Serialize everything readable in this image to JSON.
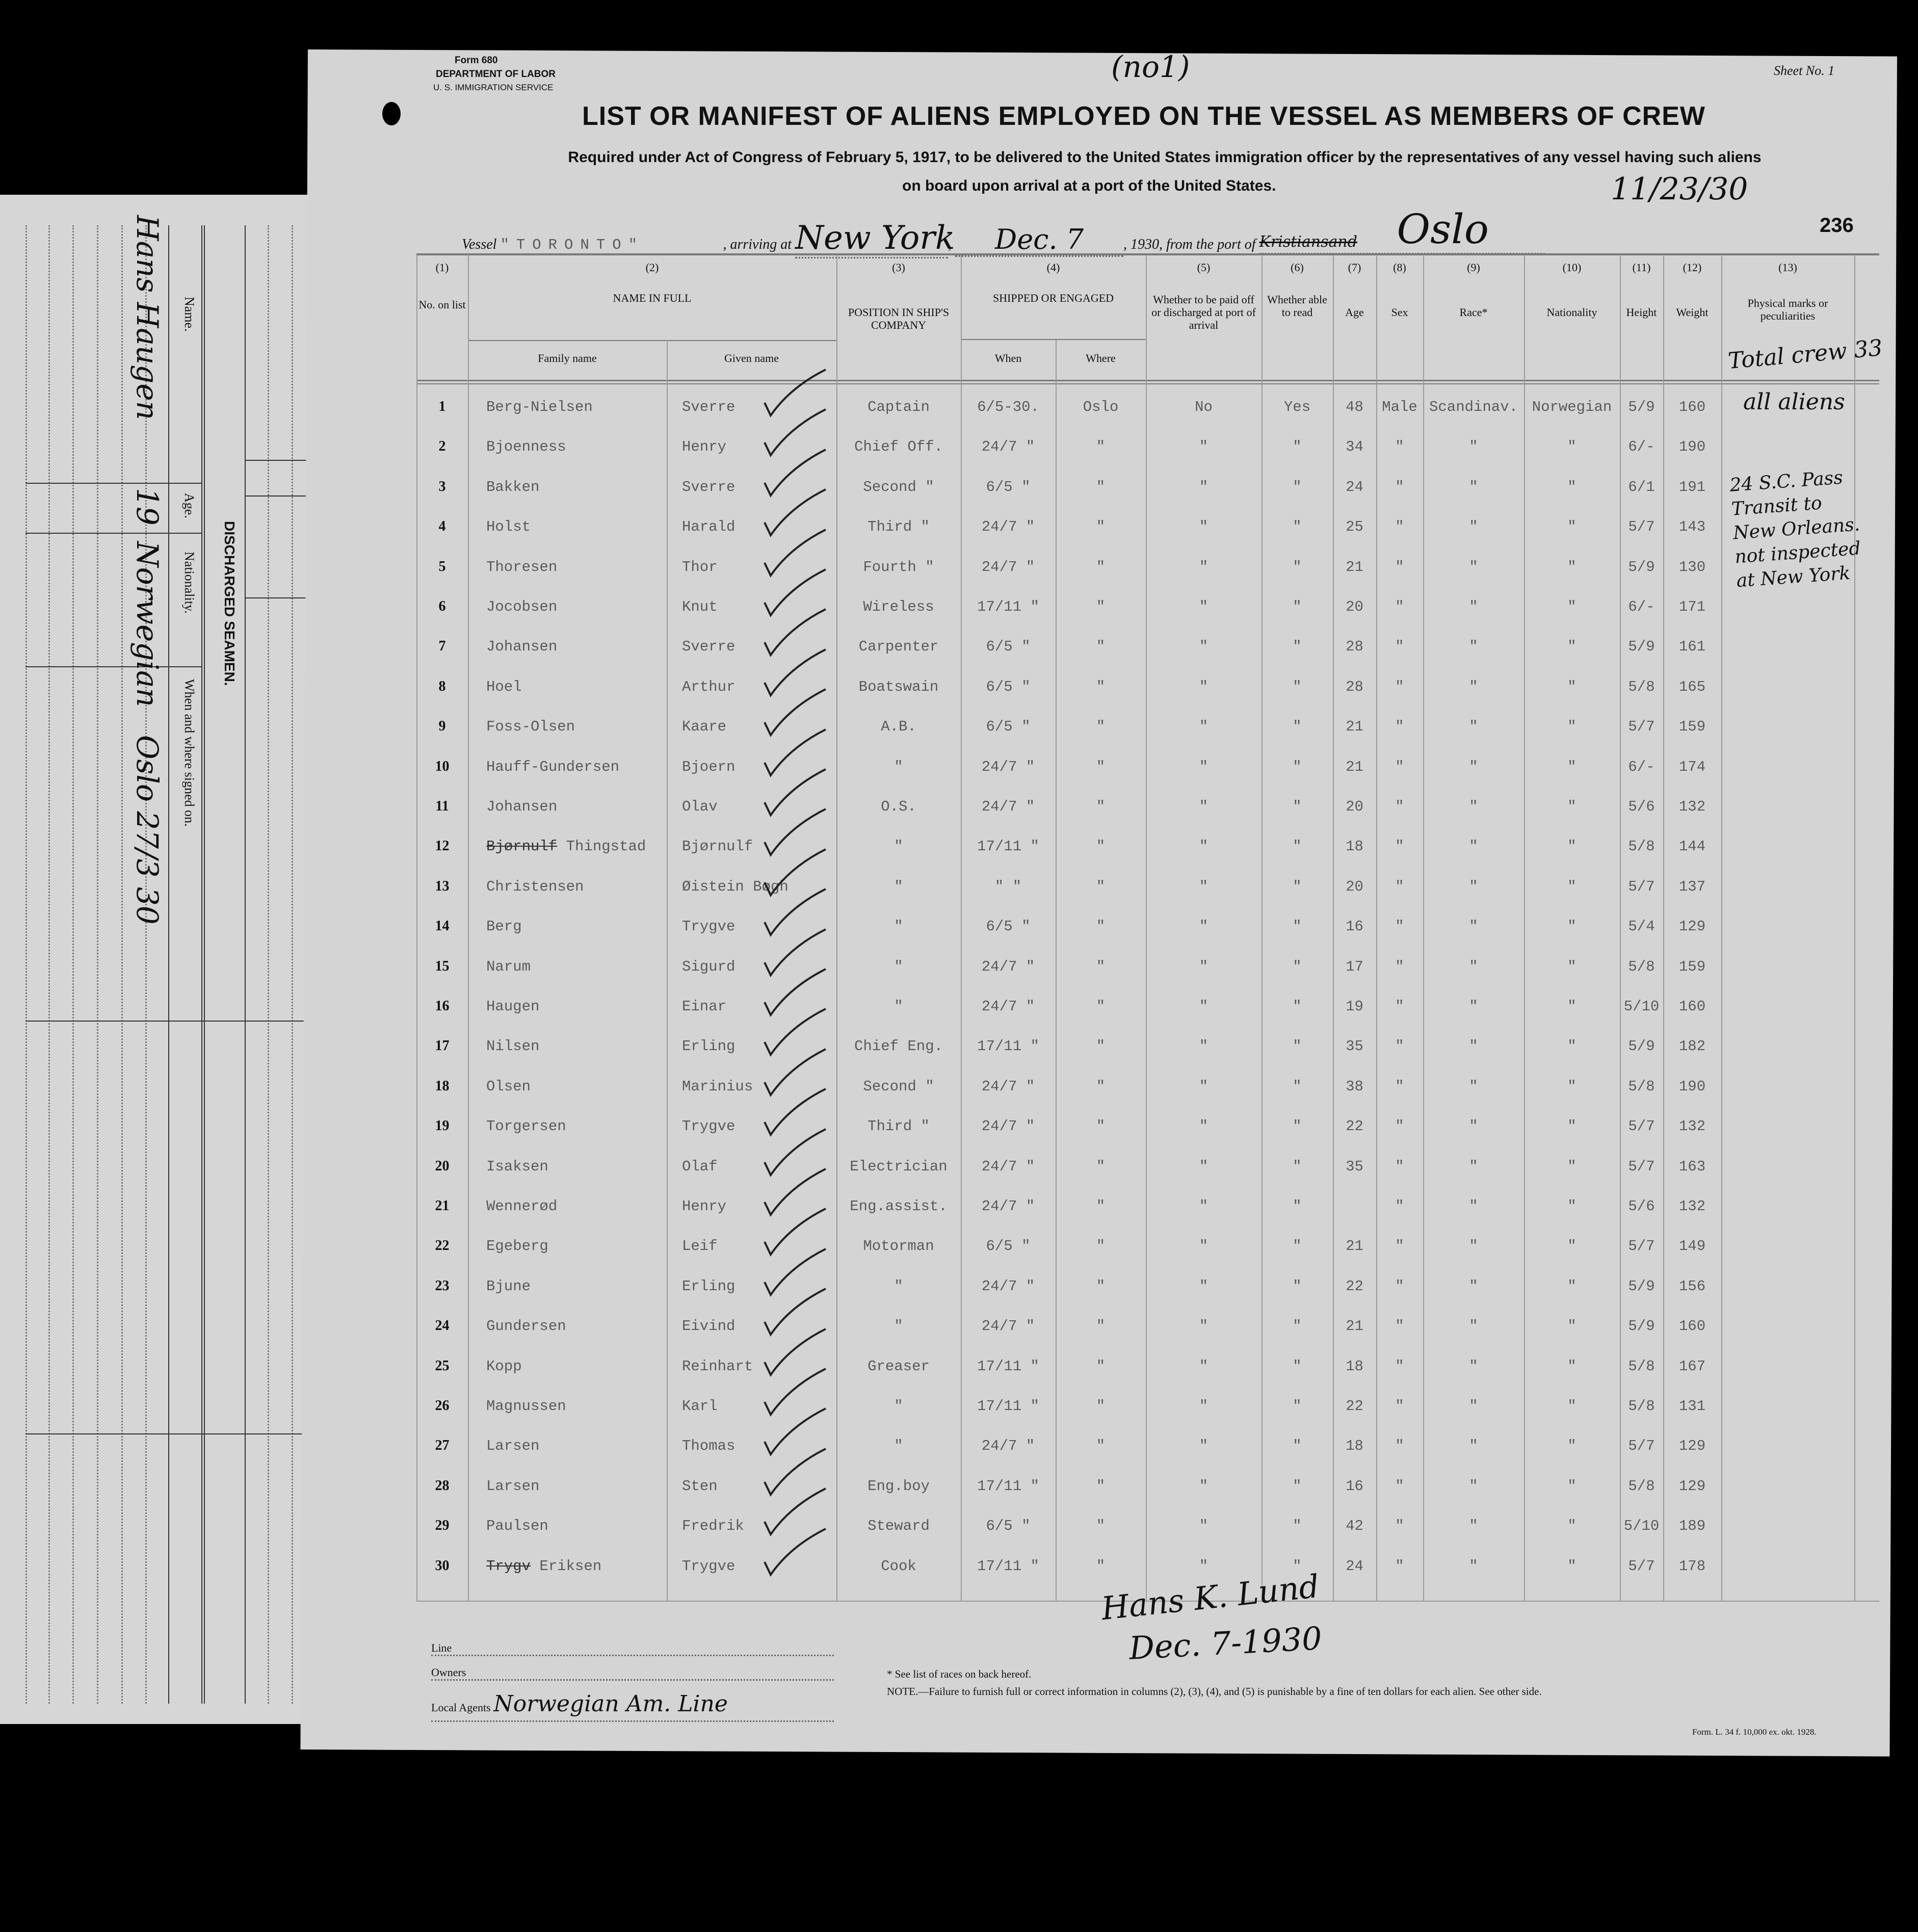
{
  "header": {
    "form_no": "Form 680",
    "department": "DEPARTMENT OF LABOR",
    "service": "U. S. IMMIGRATION SERVICE",
    "handwritten_note": "(no1)",
    "sheet_label": "Sheet No.",
    "sheet_no": "1",
    "title": "LIST OR MANIFEST OF ALIENS EMPLOYED ON THE VESSEL AS MEMBERS OF CREW",
    "subtitle_1": "Required under Act of Congress of February 5, 1917, to be delivered to the United States immigration officer by the representatives of any vessel having such aliens",
    "subtitle_2": "on board upon arrival at a port of the United States.",
    "handwritten_date": "11/23/30",
    "page_number": "236",
    "vessel_label": "Vessel",
    "vessel": "\"TORONTO\"",
    "arriving_label": ", arriving at",
    "arriving_at": "New York",
    "arrival_date": "Dec. 7",
    "year": ", 1930, ",
    "from_label": "from the port of",
    "port_struck": "Kristiansand",
    "port": "Oslo"
  },
  "table": {
    "col_numbers": [
      "(1)",
      "(2)",
      "(3)",
      "(4)",
      "(5)",
      "(6)",
      "(7)",
      "(8)",
      "(9)",
      "(10)",
      "(11)",
      "(12)",
      "(13)"
    ],
    "headers": {
      "no_on_list": "No. on list",
      "name_in_full": "NAME IN FULL",
      "family_name": "Family name",
      "given_name": "Given name",
      "position": "POSITION IN SHIP'S COMPANY",
      "shipped": "SHIPPED OR ENGAGED",
      "when": "When",
      "where": "Where",
      "paid_off": "Whether to be paid off or discharged at port of arrival",
      "able_read": "Whether able to read",
      "age": "Age",
      "sex": "Sex",
      "race": "Race*",
      "nationality": "Nationality",
      "height": "Height",
      "weight": "Weight",
      "physical": "Physical marks or peculiarities"
    },
    "total_crew_note": "Total crew 33",
    "all_aliens_note": "all aliens",
    "transit_note": [
      "24 S.C. Pass",
      "Transit to",
      "New Orleans.",
      "not inspected",
      "at New York"
    ],
    "rows": [
      [
        "1",
        "Berg-Nielsen",
        "Sverre",
        "Captain",
        "6/5-30.",
        "Oslo",
        "No",
        "Yes",
        "48",
        "Male",
        "Scandinav.",
        "Norwegian",
        "5/9",
        "160"
      ],
      [
        "2",
        "Bjoenness",
        "Henry",
        "Chief Off.",
        "24/7  \"",
        "\"",
        "\"",
        "\"",
        "34",
        "\"",
        "\"",
        "\"",
        "6/-",
        "190"
      ],
      [
        "3",
        "Bakken",
        "Sverre",
        "Second  \"",
        "6/5  \"",
        "\"",
        "\"",
        "\"",
        "24",
        "\"",
        "\"",
        "\"",
        "6/1",
        "191"
      ],
      [
        "4",
        "Holst",
        "Harald",
        "Third   \"",
        "24/7  \"",
        "\"",
        "\"",
        "\"",
        "25",
        "\"",
        "\"",
        "\"",
        "5/7",
        "143"
      ],
      [
        "5",
        "Thoresen",
        "Thor",
        "Fourth  \"",
        "24/7  \"",
        "\"",
        "\"",
        "\"",
        "21",
        "\"",
        "\"",
        "\"",
        "5/9",
        "130"
      ],
      [
        "6",
        "Jocobsen",
        "Knut",
        "Wireless",
        "17/11 \"",
        "\"",
        "\"",
        "\"",
        "20",
        "\"",
        "\"",
        "\"",
        "6/-",
        "171"
      ],
      [
        "7",
        "Johansen",
        "Sverre",
        "Carpenter",
        "6/5  \"",
        "\"",
        "\"",
        "\"",
        "28",
        "\"",
        "\"",
        "\"",
        "5/9",
        "161"
      ],
      [
        "8",
        "Hoel",
        "Arthur",
        "Boatswain",
        "6/5  \"",
        "\"",
        "\"",
        "\"",
        "28",
        "\"",
        "\"",
        "\"",
        "5/8",
        "165"
      ],
      [
        "9",
        "Foss-Olsen",
        "Kaare",
        "A.B.",
        "6/5  \"",
        "\"",
        "\"",
        "\"",
        "21",
        "\"",
        "\"",
        "\"",
        "5/7",
        "159"
      ],
      [
        "10",
        "Hauff-Gundersen",
        "Bjoern",
        "\"",
        "24/7  \"",
        "\"",
        "\"",
        "\"",
        "21",
        "\"",
        "\"",
        "\"",
        "6/-",
        "174"
      ],
      [
        "11",
        "Johansen",
        "Olav",
        "O.S.",
        "24/7  \"",
        "\"",
        "\"",
        "\"",
        "20",
        "\"",
        "\"",
        "\"",
        "5/6",
        "132"
      ],
      [
        "12",
        "Thingstad",
        "Bjørnulf",
        "\"",
        "17/11 \"",
        "\"",
        "\"",
        "\"",
        "18",
        "\"",
        "\"",
        "\"",
        "5/8",
        "144"
      ],
      [
        "13",
        "Christensen",
        "Øistein Bøgh",
        "\"",
        "\"   \"",
        "\"",
        "\"",
        "\"",
        "20",
        "\"",
        "\"",
        "\"",
        "5/7",
        "137"
      ],
      [
        "14",
        "Berg",
        "Trygve",
        "\"",
        "6/5  \"",
        "\"",
        "\"",
        "\"",
        "16",
        "\"",
        "\"",
        "\"",
        "5/4",
        "129"
      ],
      [
        "15",
        "Narum",
        "Sigurd",
        "\"",
        "24/7  \"",
        "\"",
        "\"",
        "\"",
        "17",
        "\"",
        "\"",
        "\"",
        "5/8",
        "159"
      ],
      [
        "16",
        "Haugen",
        "Einar",
        "\"",
        "24/7  \"",
        "\"",
        "\"",
        "\"",
        "19",
        "\"",
        "\"",
        "\"",
        "5/10",
        "160"
      ],
      [
        "17",
        "Nilsen",
        "Erling",
        "Chief Eng.",
        "17/11 \"",
        "\"",
        "\"",
        "\"",
        "35",
        "\"",
        "\"",
        "\"",
        "5/9",
        "182"
      ],
      [
        "18",
        "Olsen",
        "Marinius",
        "Second  \"",
        "24/7  \"",
        "\"",
        "\"",
        "\"",
        "38",
        "\"",
        "\"",
        "\"",
        "5/8",
        "190"
      ],
      [
        "19",
        "Torgersen",
        "Trygve",
        "Third   \"",
        "24/7  \"",
        "\"",
        "\"",
        "\"",
        "22",
        "\"",
        "\"",
        "\"",
        "5/7",
        "132"
      ],
      [
        "20",
        "Isaksen",
        "Olaf",
        "Electrician",
        "24/7  \"",
        "\"",
        "\"",
        "\"",
        "35",
        "\"",
        "\"",
        "\"",
        "5/7",
        "163"
      ],
      [
        "21",
        "Wennerød",
        "Henry",
        "Eng.assist.",
        "24/7  \"",
        "\"",
        "\"",
        "\"",
        "",
        "\"",
        "\"",
        "\"",
        "5/6",
        "132"
      ],
      [
        "22",
        "Egeberg",
        "Leif",
        "Motorman",
        "6/5  \"",
        "\"",
        "\"",
        "\"",
        "21",
        "\"",
        "\"",
        "\"",
        "5/7",
        "149"
      ],
      [
        "23",
        "Bjune",
        "Erling",
        "\"",
        "24/7  \"",
        "\"",
        "\"",
        "\"",
        "22",
        "\"",
        "\"",
        "\"",
        "5/9",
        "156"
      ],
      [
        "24",
        "Gundersen",
        "Eivind",
        "\"",
        "24/7  \"",
        "\"",
        "\"",
        "\"",
        "21",
        "\"",
        "\"",
        "\"",
        "5/9",
        "160"
      ],
      [
        "25",
        "Kopp",
        "Reinhart",
        "Greaser",
        "17/11 \"",
        "\"",
        "\"",
        "\"",
        "18",
        "\"",
        "\"",
        "\"",
        "5/8",
        "167"
      ],
      [
        "26",
        "Magnussen",
        "Karl",
        "\"",
        "17/11 \"",
        "\"",
        "\"",
        "\"",
        "22",
        "\"",
        "\"",
        "\"",
        "5/8",
        "131"
      ],
      [
        "27",
        "Larsen",
        "Thomas",
        "\"",
        "24/7  \"",
        "\"",
        "\"",
        "\"",
        "18",
        "\"",
        "\"",
        "\"",
        "5/7",
        "129"
      ],
      [
        "28",
        "Larsen",
        "Sten",
        "Eng.boy",
        "17/11 \"",
        "\"",
        "\"",
        "\"",
        "16",
        "\"",
        "\"",
        "\"",
        "5/8",
        "129"
      ],
      [
        "29",
        "Paulsen",
        "Fredrik",
        "Steward",
        "6/5  \"",
        "\"",
        "\"",
        "\"",
        "42",
        "\"",
        "\"",
        "\"",
        "5/10",
        "189"
      ],
      [
        "30",
        "Eriksen",
        "Trygve",
        "Cook",
        "17/11 \"",
        "\"",
        "\"",
        "\"",
        "24",
        "\"",
        "\"",
        "\"",
        "5/7",
        "178"
      ]
    ],
    "struck_family": {
      "11": "Bjørnulf",
      "29": "Trygv"
    }
  },
  "footer": {
    "signature": "Hans K. Lund",
    "signature_date": "Dec. 7-1930",
    "line_label": "Line",
    "owners_label": "Owners",
    "agents_label": "Local Agents",
    "agents_value": "Norwegian Am. Line",
    "races_note": "* See list of races on back hereof.",
    "note": "NOTE.—Failure to furnish full or correct information in columns (2), (3), (4), and (5) is punishable by a fine of ten dollars for each alien.  See other side.",
    "form_ref": "Form. L. 34 f. 10,000 ex. okt. 1928."
  },
  "inset": {
    "title": "DISCHARGED SEAMEN.",
    "name_label": "Name.",
    "age_label": "Age.",
    "nationality_label": "Nationality.",
    "signed_label": "When and where signed on.",
    "name_value": "Hans Haugen",
    "age_value": "19",
    "nationality_value": "Norwegian",
    "signed_value": "Oslo 27/3 30"
  }
}
